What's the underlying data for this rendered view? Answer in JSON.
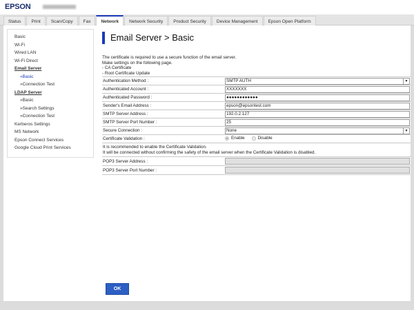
{
  "header": {
    "logo": "EPSON"
  },
  "tabs": [
    "Status",
    "Print",
    "Scan/Copy",
    "Fax",
    "Network",
    "Network Security",
    "Product Security",
    "Device Management",
    "Epson Open Platform"
  ],
  "active_tab": "Network",
  "sidebar": [
    {
      "label": "Basic",
      "type": "item"
    },
    {
      "label": "Wi-Fi",
      "type": "item"
    },
    {
      "label": "Wired LAN",
      "type": "item"
    },
    {
      "label": "Wi-Fi Direct",
      "type": "item"
    },
    {
      "label": "Email Server",
      "type": "head"
    },
    {
      "label": "»Basic",
      "type": "sub",
      "current": true
    },
    {
      "label": "»Connection Test",
      "type": "sub"
    },
    {
      "label": "LDAP Server",
      "type": "head"
    },
    {
      "label": "»Basic",
      "type": "sub"
    },
    {
      "label": "»Search Settings",
      "type": "sub"
    },
    {
      "label": "»Connection Test",
      "type": "sub"
    },
    {
      "label": "Kerberos Settings",
      "type": "item"
    },
    {
      "label": "MS Network",
      "type": "item"
    },
    {
      "label": "Epson Connect Services",
      "type": "item"
    },
    {
      "label": "Google Cloud Print Services",
      "type": "item"
    }
  ],
  "page": {
    "title": "Email Server > Basic",
    "intro": [
      "The certificate is required to use a secure function of the email server.",
      "Make settings on the following page.",
      "- CA Certificate",
      "- Root Certificate Update"
    ],
    "fields": [
      {
        "label": "Authentication Method :",
        "value": "SMTP AUTH",
        "kind": "select"
      },
      {
        "label": "Authenticated Account :",
        "value": "XXXXXXX",
        "kind": "text"
      },
      {
        "label": "Authenticated Password :",
        "value": "●●●●●●●●●●●●",
        "kind": "text"
      },
      {
        "label": "Sender's Email Address :",
        "value": "epson@epsontest.com",
        "kind": "text"
      },
      {
        "label": "SMTP Server Address :",
        "value": "192.0.2.127",
        "kind": "text"
      },
      {
        "label": "SMTP Server Port Number :",
        "value": "25",
        "kind": "text"
      },
      {
        "label": "Secure Connection :",
        "value": "None",
        "kind": "select"
      }
    ],
    "cert_validation": {
      "label": "Certificate Validation :",
      "options": [
        "Enable",
        "Disable"
      ],
      "selected": "Enable"
    },
    "note": [
      "It is recommended to enable the Certificate Validation.",
      "It will be connected without confirming the safety of the email server when the Certificate Validation is disabled."
    ],
    "pop3": [
      {
        "label": "POP3 Server Address :",
        "value": ""
      },
      {
        "label": "POP3 Server Port Number :",
        "value": ""
      }
    ],
    "ok_label": "OK"
  }
}
